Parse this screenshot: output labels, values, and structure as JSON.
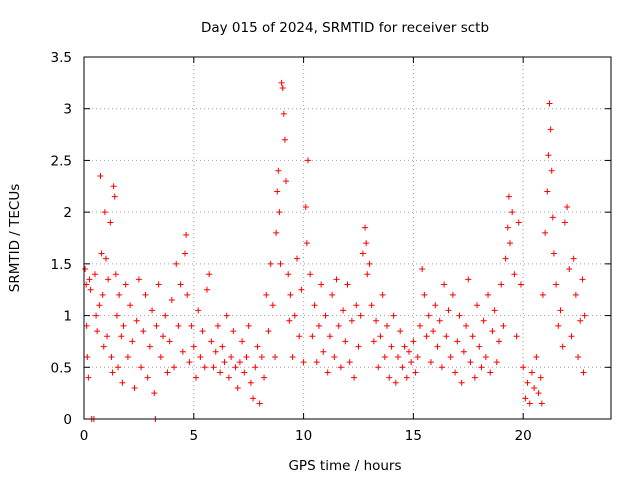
{
  "chart_data": {
    "type": "scatter",
    "title": "Day 015 of 2024, SRMTID for receiver sctb",
    "xlabel": "GPS time / hours",
    "ylabel": "SRMTID / TECUs",
    "xlim": [
      0,
      24
    ],
    "ylim": [
      0,
      3.5
    ],
    "x_ticks": [
      0,
      5,
      10,
      15,
      20
    ],
    "x_tick_labels": [
      "0",
      "5",
      "10",
      "15",
      "20"
    ],
    "y_ticks": [
      0,
      0.5,
      1,
      1.5,
      2,
      2.5,
      3,
      3.5
    ],
    "y_tick_labels": [
      "0",
      "0.5",
      "1",
      "1.5",
      "2",
      "2.5",
      "3",
      "3.5"
    ],
    "grid": true,
    "marker": "+",
    "series_color": "#ff0000",
    "series": [
      {
        "name": "SRMTID",
        "points": [
          [
            0.05,
            1.45
          ],
          [
            0.1,
            1.3
          ],
          [
            0.12,
            0.9
          ],
          [
            0.15,
            0.6
          ],
          [
            0.2,
            0.4
          ],
          [
            0.25,
            1.35
          ],
          [
            0.3,
            1.25
          ],
          [
            0.35,
            0.0
          ],
          [
            0.45,
            0.0
          ],
          [
            0.5,
            1.4
          ],
          [
            0.55,
            1.0
          ],
          [
            0.6,
            0.85
          ],
          [
            0.7,
            1.1
          ],
          [
            0.75,
            2.35
          ],
          [
            0.8,
            1.6
          ],
          [
            0.85,
            1.2
          ],
          [
            0.9,
            0.7
          ],
          [
            0.95,
            2.0
          ],
          [
            1.0,
            1.55
          ],
          [
            1.05,
            0.8
          ],
          [
            1.1,
            1.35
          ],
          [
            1.2,
            1.9
          ],
          [
            1.25,
            0.6
          ],
          [
            1.3,
            0.45
          ],
          [
            1.35,
            2.25
          ],
          [
            1.4,
            2.15
          ],
          [
            1.45,
            1.4
          ],
          [
            1.5,
            1.0
          ],
          [
            1.55,
            0.5
          ],
          [
            1.6,
            1.2
          ],
          [
            1.7,
            0.8
          ],
          [
            1.75,
            0.35
          ],
          [
            1.8,
            0.9
          ],
          [
            1.9,
            1.3
          ],
          [
            2.0,
            0.6
          ],
          [
            2.1,
            1.1
          ],
          [
            2.2,
            0.75
          ],
          [
            2.3,
            0.3
          ],
          [
            2.4,
            0.95
          ],
          [
            2.5,
            1.35
          ],
          [
            2.6,
            0.5
          ],
          [
            2.7,
            0.85
          ],
          [
            2.8,
            1.2
          ],
          [
            2.9,
            0.4
          ],
          [
            3.0,
            0.7
          ],
          [
            3.1,
            1.05
          ],
          [
            3.2,
            0.25
          ],
          [
            3.25,
            0.0
          ],
          [
            3.3,
            0.9
          ],
          [
            3.4,
            1.3
          ],
          [
            3.5,
            0.6
          ],
          [
            3.6,
            0.8
          ],
          [
            3.7,
            1.0
          ],
          [
            3.8,
            0.45
          ],
          [
            3.9,
            0.75
          ],
          [
            4.0,
            1.15
          ],
          [
            4.1,
            0.5
          ],
          [
            4.2,
            1.5
          ],
          [
            4.3,
            0.9
          ],
          [
            4.4,
            1.3
          ],
          [
            4.5,
            0.65
          ],
          [
            4.6,
            1.6
          ],
          [
            4.65,
            1.78
          ],
          [
            4.7,
            1.2
          ],
          [
            4.8,
            0.55
          ],
          [
            4.9,
            0.9
          ],
          [
            5.0,
            0.7
          ],
          [
            5.1,
            0.4
          ],
          [
            5.2,
            1.05
          ],
          [
            5.3,
            0.6
          ],
          [
            5.4,
            0.85
          ],
          [
            5.5,
            0.5
          ],
          [
            5.6,
            1.25
          ],
          [
            5.7,
            1.4
          ],
          [
            5.8,
            0.75
          ],
          [
            5.9,
            0.5
          ],
          [
            6.0,
            0.65
          ],
          [
            6.1,
            0.9
          ],
          [
            6.2,
            0.45
          ],
          [
            6.3,
            0.7
          ],
          [
            6.4,
            0.55
          ],
          [
            6.5,
            1.0
          ],
          [
            6.6,
            0.4
          ],
          [
            6.7,
            0.6
          ],
          [
            6.8,
            0.85
          ],
          [
            6.9,
            0.5
          ],
          [
            7.0,
            0.3
          ],
          [
            7.1,
            0.55
          ],
          [
            7.2,
            0.75
          ],
          [
            7.3,
            0.45
          ],
          [
            7.4,
            0.6
          ],
          [
            7.5,
            0.9
          ],
          [
            7.6,
            0.35
          ],
          [
            7.7,
            0.2
          ],
          [
            7.8,
            0.5
          ],
          [
            7.9,
            0.7
          ],
          [
            8.0,
            0.15
          ],
          [
            8.1,
            0.6
          ],
          [
            8.2,
            0.4
          ],
          [
            8.3,
            1.2
          ],
          [
            8.4,
            0.85
          ],
          [
            8.5,
            1.5
          ],
          [
            8.6,
            1.1
          ],
          [
            8.7,
            0.6
          ],
          [
            8.75,
            1.8
          ],
          [
            8.8,
            2.2
          ],
          [
            8.85,
            2.4
          ],
          [
            8.9,
            2.0
          ],
          [
            8.95,
            1.5
          ],
          [
            9.0,
            3.25
          ],
          [
            9.05,
            3.2
          ],
          [
            9.1,
            2.95
          ],
          [
            9.15,
            2.7
          ],
          [
            9.2,
            2.3
          ],
          [
            9.3,
            1.4
          ],
          [
            9.35,
            0.95
          ],
          [
            9.4,
            1.2
          ],
          [
            9.5,
            0.6
          ],
          [
            9.6,
            1.0
          ],
          [
            9.7,
            1.55
          ],
          [
            9.8,
            0.8
          ],
          [
            9.9,
            1.25
          ],
          [
            10.0,
            0.55
          ],
          [
            10.1,
            2.05
          ],
          [
            10.15,
            1.7
          ],
          [
            10.2,
            2.5
          ],
          [
            10.3,
            1.4
          ],
          [
            10.4,
            0.8
          ],
          [
            10.5,
            1.1
          ],
          [
            10.6,
            0.55
          ],
          [
            10.7,
            0.9
          ],
          [
            10.8,
            1.3
          ],
          [
            10.9,
            0.65
          ],
          [
            11.0,
            1.0
          ],
          [
            11.1,
            0.45
          ],
          [
            11.2,
            0.8
          ],
          [
            11.3,
            1.2
          ],
          [
            11.4,
            0.6
          ],
          [
            11.5,
            1.35
          ],
          [
            11.6,
            0.9
          ],
          [
            11.7,
            0.5
          ],
          [
            11.8,
            1.05
          ],
          [
            11.9,
            0.75
          ],
          [
            12.0,
            1.3
          ],
          [
            12.1,
            0.55
          ],
          [
            12.2,
            0.95
          ],
          [
            12.3,
            0.4
          ],
          [
            12.4,
            1.1
          ],
          [
            12.5,
            0.7
          ],
          [
            12.6,
            1.0
          ],
          [
            12.7,
            1.6
          ],
          [
            12.8,
            1.85
          ],
          [
            12.85,
            1.7
          ],
          [
            12.9,
            1.4
          ],
          [
            13.0,
            1.5
          ],
          [
            13.1,
            1.1
          ],
          [
            13.2,
            0.75
          ],
          [
            13.3,
            0.95
          ],
          [
            13.4,
            0.5
          ],
          [
            13.5,
            0.8
          ],
          [
            13.6,
            1.2
          ],
          [
            13.7,
            0.6
          ],
          [
            13.8,
            0.9
          ],
          [
            13.9,
            0.4
          ],
          [
            14.0,
            0.7
          ],
          [
            14.1,
            1.0
          ],
          [
            14.2,
            0.35
          ],
          [
            14.3,
            0.6
          ],
          [
            14.4,
            0.85
          ],
          [
            14.5,
            0.5
          ],
          [
            14.6,
            0.7
          ],
          [
            14.7,
            0.4
          ],
          [
            14.8,
            0.65
          ],
          [
            14.9,
            0.55
          ],
          [
            15.0,
            0.75
          ],
          [
            15.1,
            0.45
          ],
          [
            15.2,
            0.6
          ],
          [
            15.3,
            0.9
          ],
          [
            15.4,
            1.45
          ],
          [
            15.5,
            1.2
          ],
          [
            15.6,
            0.8
          ],
          [
            15.7,
            1.0
          ],
          [
            15.8,
            0.55
          ],
          [
            15.9,
            0.85
          ],
          [
            16.0,
            1.1
          ],
          [
            16.1,
            0.7
          ],
          [
            16.2,
            0.95
          ],
          [
            16.3,
            0.5
          ],
          [
            16.4,
            1.3
          ],
          [
            16.5,
            0.8
          ],
          [
            16.6,
            1.05
          ],
          [
            16.7,
            0.6
          ],
          [
            16.8,
            1.2
          ],
          [
            16.9,
            0.45
          ],
          [
            17.0,
            0.75
          ],
          [
            17.1,
            1.0
          ],
          [
            17.2,
            0.35
          ],
          [
            17.3,
            0.65
          ],
          [
            17.4,
            0.9
          ],
          [
            17.5,
            1.35
          ],
          [
            17.6,
            0.55
          ],
          [
            17.7,
            0.8
          ],
          [
            17.8,
            0.4
          ],
          [
            17.9,
            1.1
          ],
          [
            18.0,
            0.7
          ],
          [
            18.1,
            0.5
          ],
          [
            18.2,
            0.95
          ],
          [
            18.3,
            0.6
          ],
          [
            18.4,
            1.2
          ],
          [
            18.5,
            0.45
          ],
          [
            18.6,
            0.85
          ],
          [
            18.7,
            1.05
          ],
          [
            18.8,
            0.55
          ],
          [
            18.9,
            0.75
          ],
          [
            19.0,
            1.3
          ],
          [
            19.1,
            0.9
          ],
          [
            19.2,
            1.55
          ],
          [
            19.3,
            1.85
          ],
          [
            19.35,
            2.15
          ],
          [
            19.4,
            1.7
          ],
          [
            19.5,
            2.0
          ],
          [
            19.6,
            1.4
          ],
          [
            19.7,
            0.8
          ],
          [
            19.8,
            1.9
          ],
          [
            19.9,
            1.3
          ],
          [
            20.0,
            0.5
          ],
          [
            20.1,
            0.2
          ],
          [
            20.2,
            0.35
          ],
          [
            20.3,
            0.15
          ],
          [
            20.4,
            0.45
          ],
          [
            20.5,
            0.3
          ],
          [
            20.6,
            0.6
          ],
          [
            20.7,
            0.25
          ],
          [
            20.8,
            0.4
          ],
          [
            20.85,
            0.15
          ],
          [
            20.9,
            1.2
          ],
          [
            21.0,
            1.8
          ],
          [
            21.1,
            2.2
          ],
          [
            21.15,
            2.55
          ],
          [
            21.2,
            3.05
          ],
          [
            21.25,
            2.8
          ],
          [
            21.3,
            2.4
          ],
          [
            21.35,
            1.95
          ],
          [
            21.4,
            1.6
          ],
          [
            21.5,
            1.3
          ],
          [
            21.6,
            0.9
          ],
          [
            21.7,
            1.05
          ],
          [
            21.8,
            0.7
          ],
          [
            21.9,
            1.9
          ],
          [
            22.0,
            2.05
          ],
          [
            22.1,
            1.45
          ],
          [
            22.2,
            0.8
          ],
          [
            22.3,
            1.55
          ],
          [
            22.4,
            1.2
          ],
          [
            22.5,
            0.6
          ],
          [
            22.6,
            0.95
          ],
          [
            22.7,
            1.35
          ],
          [
            22.75,
            0.45
          ],
          [
            22.8,
            1.0
          ]
        ]
      }
    ]
  }
}
